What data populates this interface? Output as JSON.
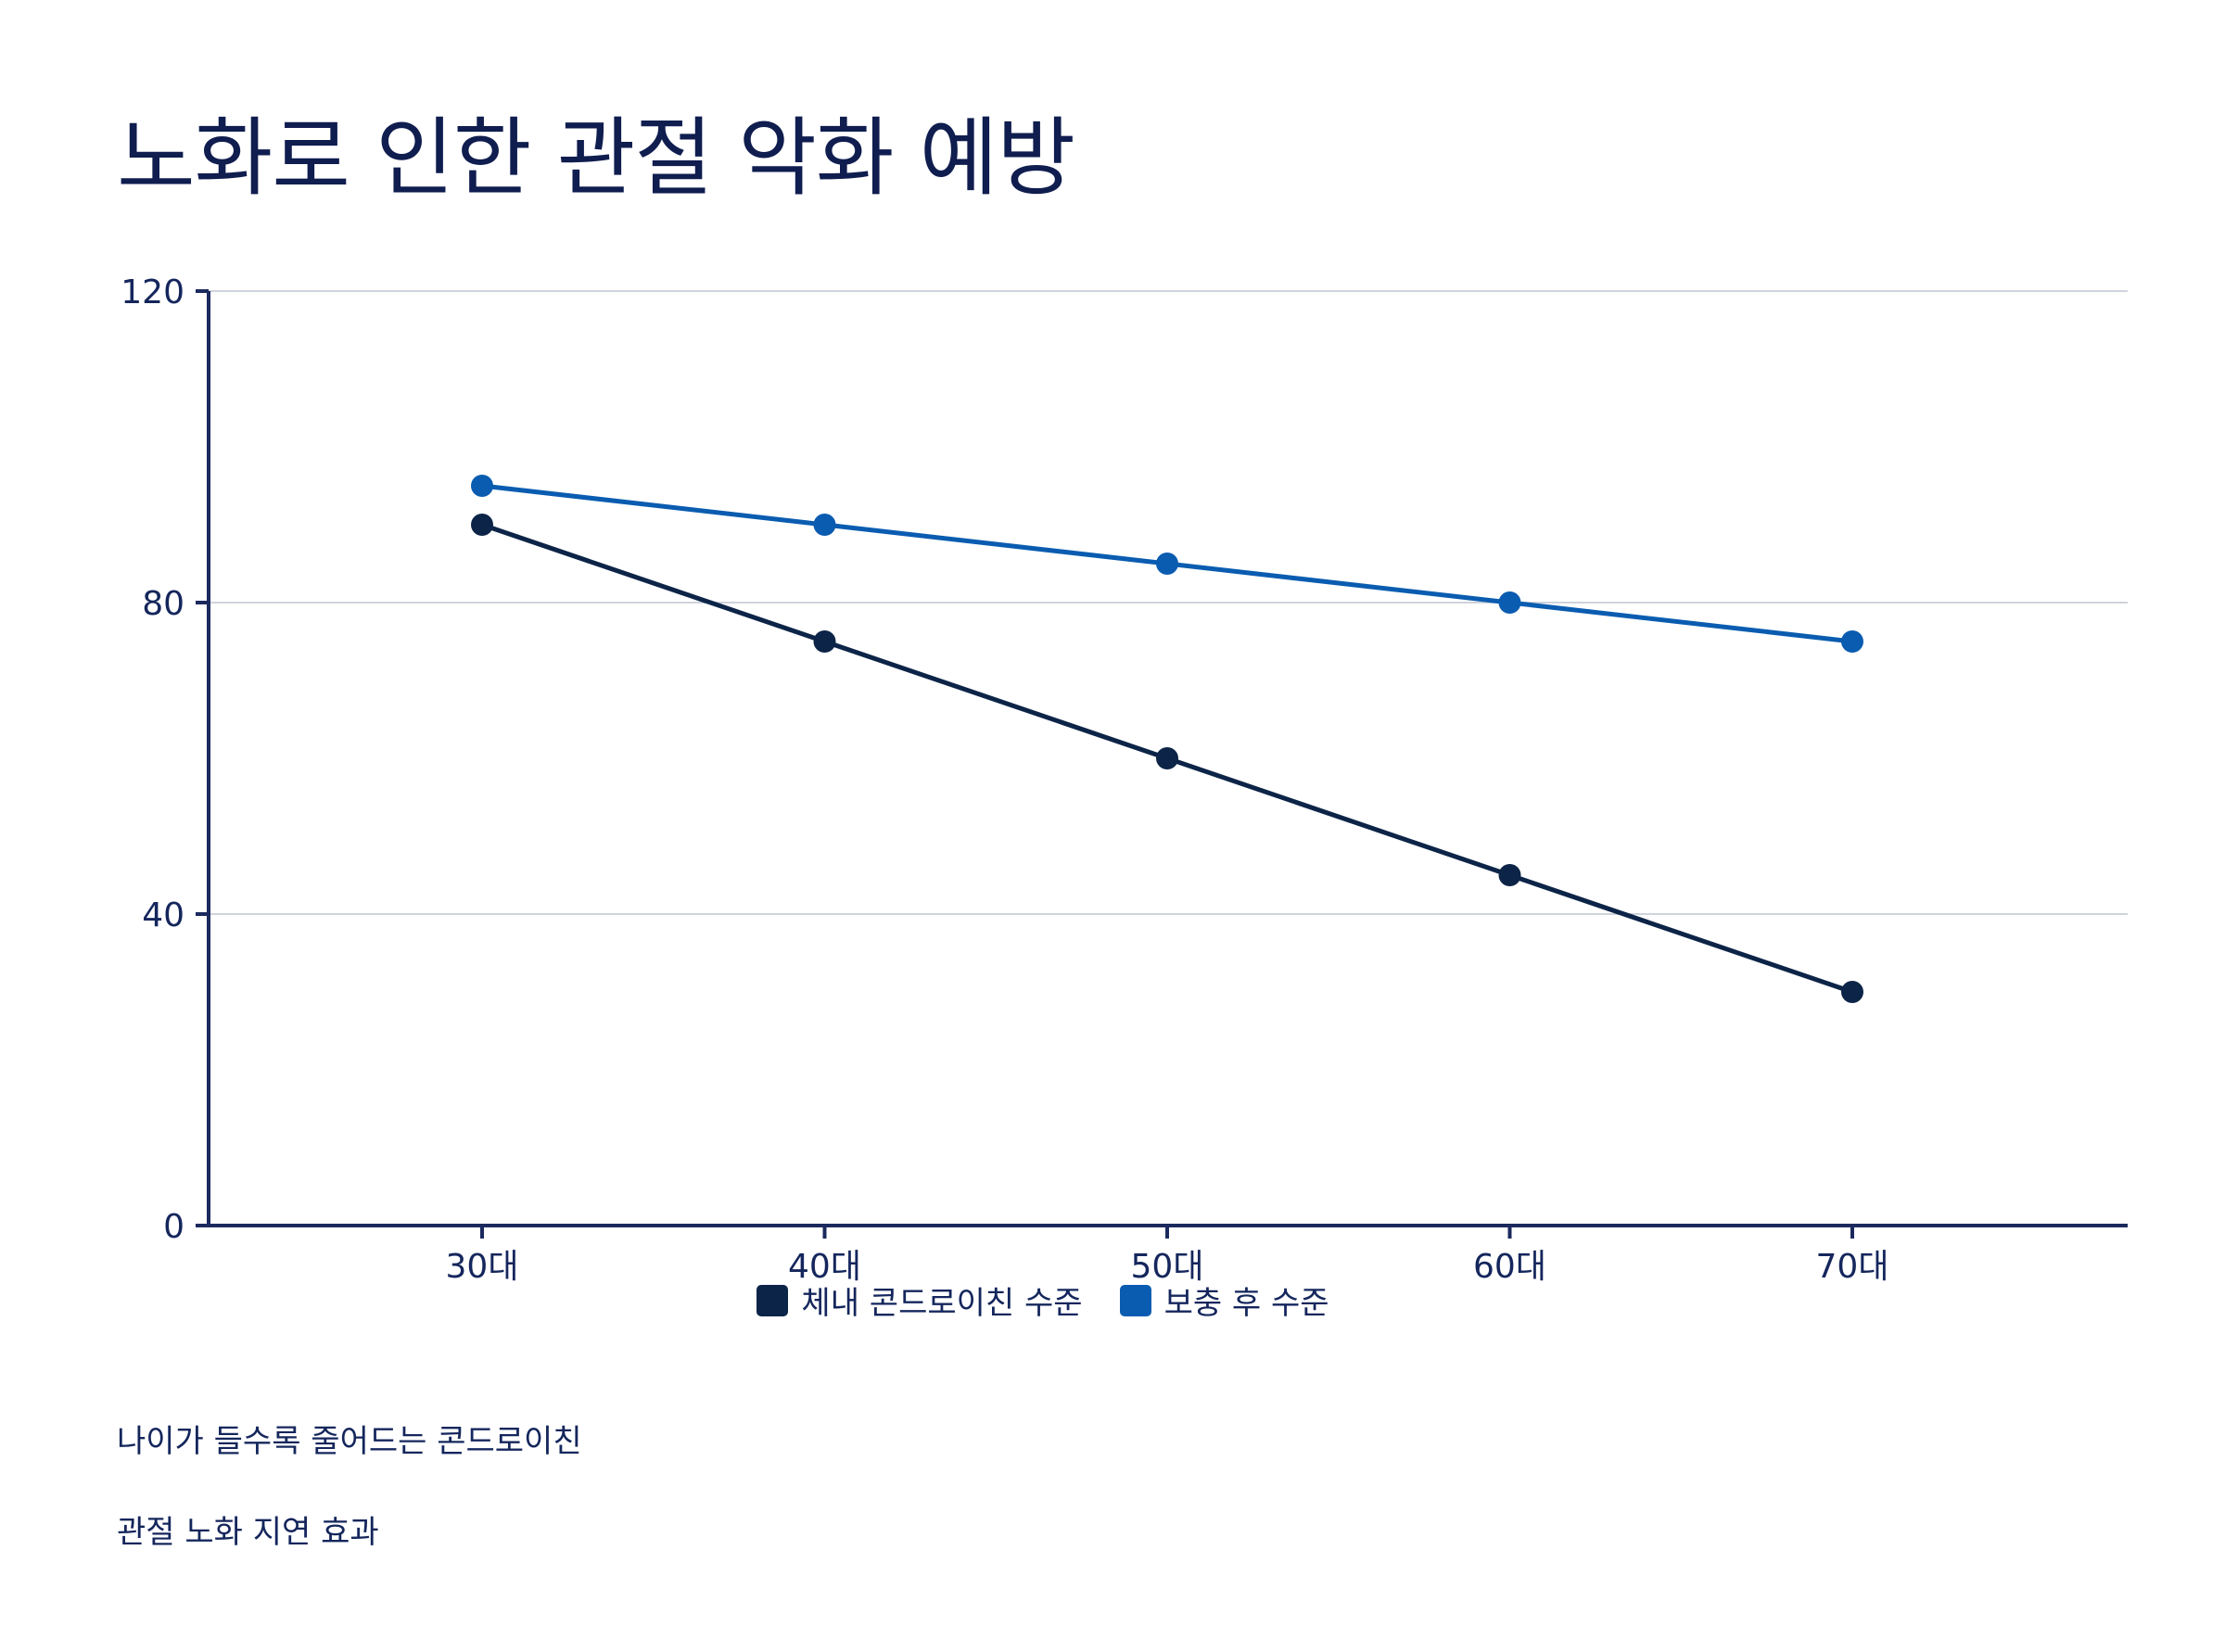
{
  "page": {
    "title": "노화로 인한 관절 악화 예방",
    "notes": [
      "나이가 들수록 줄어드는 콘드로이친",
      "관절 노화 지연 효과"
    ]
  },
  "chart_data": {
    "type": "line",
    "title": "노화로 인한 관절 악화 예방",
    "xlabel": "",
    "ylabel": "",
    "categories": [
      "30대",
      "40대",
      "50대",
      "60대",
      "70대"
    ],
    "ylim": [
      0,
      120
    ],
    "yticks": [
      0,
      40,
      80,
      120
    ],
    "grid": true,
    "legend_position": "bottom",
    "series": [
      {
        "name": "체내 콘드로이친 수준",
        "values": [
          90,
          75,
          60,
          45,
          30
        ],
        "color": "#0c2447"
      },
      {
        "name": "보충 후 수준",
        "values": [
          95,
          90,
          85,
          80,
          75
        ],
        "color": "#0a5cb0"
      }
    ]
  },
  "colors": {
    "axis": "#1b2a5e",
    "grid": "#cfd3dc",
    "text": "#14265c"
  }
}
